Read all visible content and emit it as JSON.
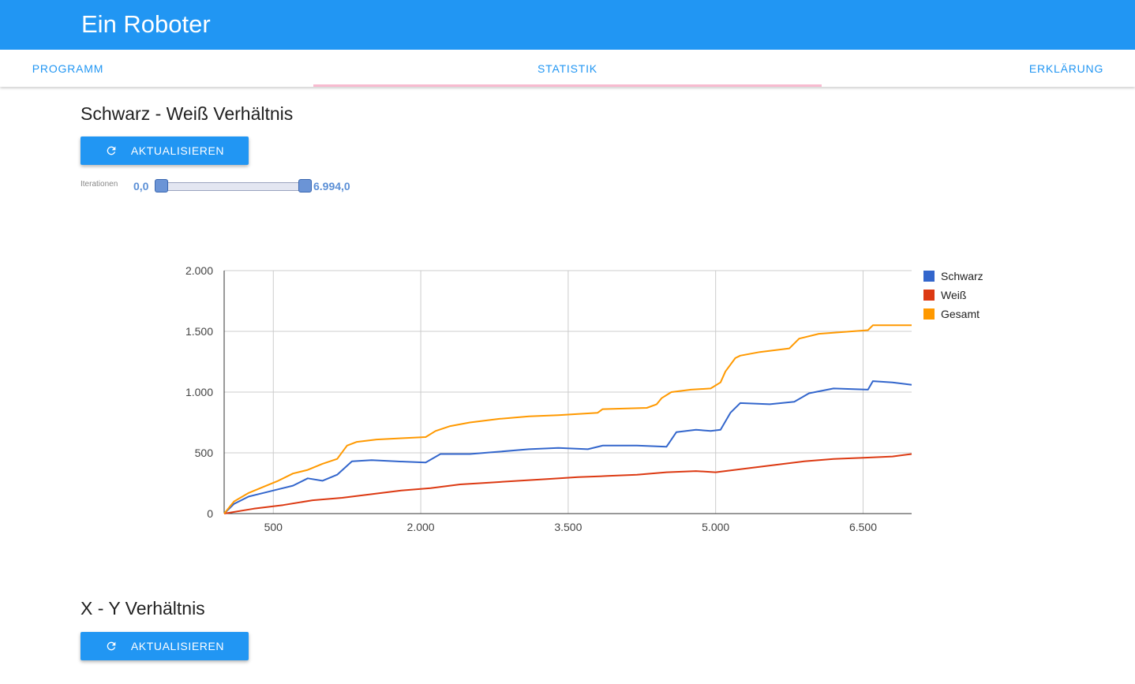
{
  "app": {
    "title": "Ein Roboter"
  },
  "tabs": [
    {
      "label": "PROGRAMM"
    },
    {
      "label": "STATISTIK",
      "active": true
    },
    {
      "label": "ERKLÄRUNG"
    }
  ],
  "section1": {
    "title": "Schwarz - Weiß Verhältnis",
    "refresh_label": "AKTUALISIEREN",
    "slider": {
      "label": "Iterationen",
      "min_text": "0,0",
      "max_text": "6.994,0",
      "min_value": 0,
      "max_value": 6994
    }
  },
  "section2": {
    "title": "X - Y Verhältnis",
    "refresh_label": "AKTUALISIEREN"
  },
  "colors": {
    "primary": "#2196f3",
    "tab_ink": "#f8bbd0",
    "schwarz": "#3366cc",
    "weiss": "#dc3912",
    "gesamt": "#ff9900"
  },
  "chart_data": {
    "type": "line",
    "x_ticks": [
      500,
      2000,
      3500,
      5000,
      6500
    ],
    "x_tick_labels": [
      "500",
      "2.000",
      "3.500",
      "5.000",
      "6.500"
    ],
    "y_ticks": [
      0,
      500,
      1000,
      1500,
      2000
    ],
    "y_tick_labels": [
      "0",
      "500",
      "1.000",
      "1.500",
      "2.000"
    ],
    "xlim": [
      0,
      6994
    ],
    "ylim": [
      0,
      2000
    ],
    "grid": true,
    "legend": "right",
    "series": [
      {
        "name": "Schwarz",
        "color": "#3366cc",
        "points": [
          [
            0,
            0
          ],
          [
            100,
            80
          ],
          [
            250,
            140
          ],
          [
            400,
            170
          ],
          [
            550,
            200
          ],
          [
            700,
            230
          ],
          [
            850,
            290
          ],
          [
            1000,
            270
          ],
          [
            1150,
            320
          ],
          [
            1300,
            430
          ],
          [
            1500,
            440
          ],
          [
            1750,
            430
          ],
          [
            2050,
            420
          ],
          [
            2200,
            490
          ],
          [
            2500,
            490
          ],
          [
            2800,
            510
          ],
          [
            3100,
            530
          ],
          [
            3400,
            540
          ],
          [
            3700,
            530
          ],
          [
            3850,
            560
          ],
          [
            4200,
            560
          ],
          [
            4500,
            550
          ],
          [
            4600,
            670
          ],
          [
            4800,
            690
          ],
          [
            4950,
            680
          ],
          [
            5050,
            690
          ],
          [
            5150,
            830
          ],
          [
            5250,
            910
          ],
          [
            5550,
            900
          ],
          [
            5800,
            920
          ],
          [
            5950,
            990
          ],
          [
            6200,
            1030
          ],
          [
            6550,
            1020
          ],
          [
            6600,
            1090
          ],
          [
            6800,
            1080
          ],
          [
            6994,
            1060
          ]
        ]
      },
      {
        "name": "Weiß",
        "color": "#dc3912",
        "points": [
          [
            0,
            0
          ],
          [
            300,
            40
          ],
          [
            600,
            70
          ],
          [
            900,
            110
          ],
          [
            1200,
            130
          ],
          [
            1500,
            160
          ],
          [
            1800,
            190
          ],
          [
            2100,
            210
          ],
          [
            2400,
            240
          ],
          [
            2700,
            255
          ],
          [
            3000,
            270
          ],
          [
            3300,
            285
          ],
          [
            3600,
            300
          ],
          [
            3900,
            310
          ],
          [
            4200,
            320
          ],
          [
            4500,
            340
          ],
          [
            4800,
            350
          ],
          [
            5000,
            340
          ],
          [
            5300,
            370
          ],
          [
            5600,
            400
          ],
          [
            5900,
            430
          ],
          [
            6200,
            450
          ],
          [
            6500,
            460
          ],
          [
            6800,
            470
          ],
          [
            6994,
            490
          ]
        ]
      },
      {
        "name": "Gesamt",
        "color": "#ff9900",
        "points": [
          [
            0,
            0
          ],
          [
            100,
            100
          ],
          [
            250,
            170
          ],
          [
            400,
            220
          ],
          [
            550,
            270
          ],
          [
            700,
            330
          ],
          [
            850,
            360
          ],
          [
            1000,
            410
          ],
          [
            1150,
            450
          ],
          [
            1250,
            560
          ],
          [
            1350,
            590
          ],
          [
            1550,
            610
          ],
          [
            1800,
            620
          ],
          [
            2050,
            630
          ],
          [
            2150,
            680
          ],
          [
            2300,
            720
          ],
          [
            2500,
            750
          ],
          [
            2800,
            780
          ],
          [
            3100,
            800
          ],
          [
            3400,
            810
          ],
          [
            3800,
            830
          ],
          [
            3850,
            860
          ],
          [
            4300,
            870
          ],
          [
            4400,
            900
          ],
          [
            4450,
            950
          ],
          [
            4550,
            1000
          ],
          [
            4750,
            1020
          ],
          [
            4950,
            1030
          ],
          [
            5050,
            1080
          ],
          [
            5100,
            1170
          ],
          [
            5200,
            1280
          ],
          [
            5250,
            1300
          ],
          [
            5450,
            1330
          ],
          [
            5750,
            1360
          ],
          [
            5850,
            1440
          ],
          [
            6050,
            1480
          ],
          [
            6550,
            1510
          ],
          [
            6600,
            1550
          ],
          [
            6994,
            1550
          ]
        ]
      }
    ]
  }
}
